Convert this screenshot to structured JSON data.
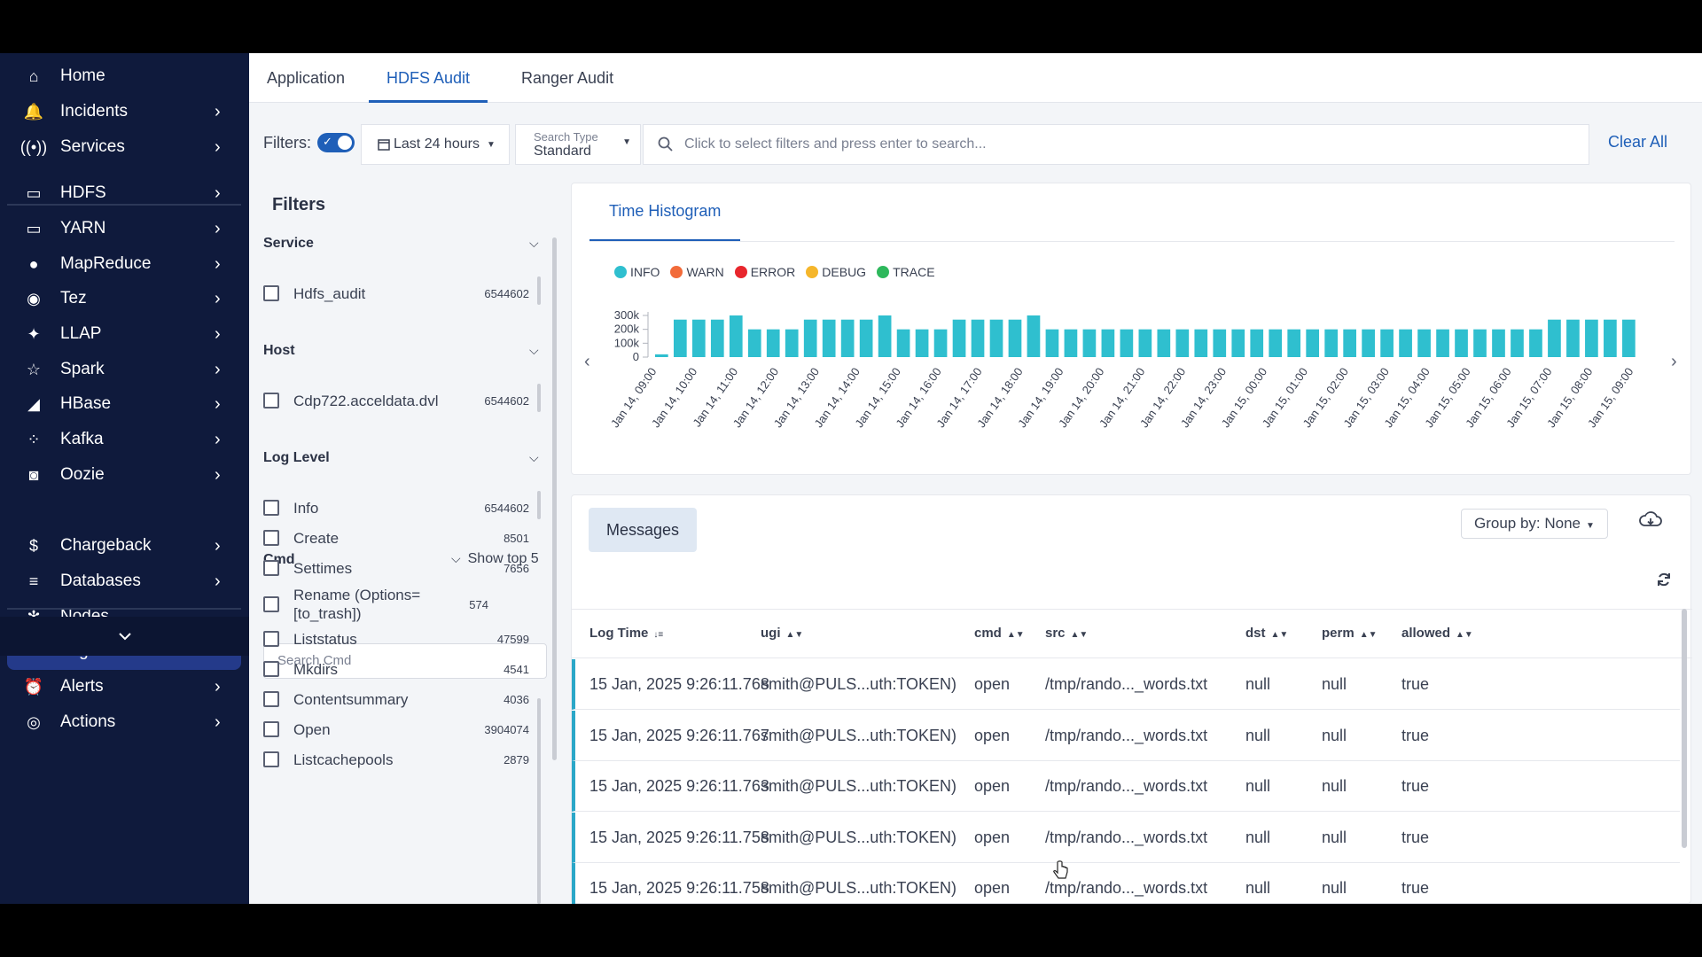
{
  "sidebar": {
    "items": [
      {
        "label": "Home",
        "icon": "home-icon",
        "chevron": false
      },
      {
        "label": "Incidents",
        "icon": "bell-icon",
        "chevron": true
      },
      {
        "label": "Services",
        "icon": "broadcast-icon",
        "chevron": true
      },
      {
        "label": "HDFS",
        "icon": "folder-icon",
        "chevron": true
      },
      {
        "label": "YARN",
        "icon": "laptop-icon",
        "chevron": true
      },
      {
        "label": "MapReduce",
        "icon": "elephant-icon",
        "chevron": true
      },
      {
        "label": "Tez",
        "icon": "tez-icon",
        "chevron": true
      },
      {
        "label": "LLAP",
        "icon": "bee-icon",
        "chevron": true
      },
      {
        "label": "Spark",
        "icon": "spark-icon",
        "chevron": true
      },
      {
        "label": "HBase",
        "icon": "orca-icon",
        "chevron": true
      },
      {
        "label": "Kafka",
        "icon": "kafka-icon",
        "chevron": true
      },
      {
        "label": "Oozie",
        "icon": "oozie-icon",
        "chevron": true
      },
      {
        "label": "Chargeback",
        "icon": "dollar-icon",
        "chevron": true
      },
      {
        "label": "Databases",
        "icon": "database-icon",
        "chevron": true
      },
      {
        "label": "Nodes",
        "icon": "nodes-icon",
        "chevron": false
      },
      {
        "label": "Logs",
        "icon": "code-icon",
        "chevron": false,
        "active": true
      },
      {
        "label": "Alerts",
        "icon": "alarm-icon",
        "chevron": true
      },
      {
        "label": "Actions",
        "icon": "target-icon",
        "chevron": true
      }
    ]
  },
  "tabs": [
    "Application",
    "HDFS Audit",
    "Ranger Audit"
  ],
  "active_tab": "HDFS Audit",
  "filterbar": {
    "label": "Filters:",
    "time_range": "Last 24 hours",
    "search_type_key": "Search Type",
    "search_type_value": "Standard",
    "search_placeholder": "Click to select filters and press enter to search...",
    "clear_all": "Clear All"
  },
  "filters": {
    "title": "Filters",
    "service": {
      "title": "Service",
      "items": [
        {
          "label": "Hdfs_audit",
          "count": "6544602"
        }
      ]
    },
    "host": {
      "title": "Host",
      "items": [
        {
          "label": "Cdp722.acceldata.dvl",
          "count": "6544602"
        }
      ]
    },
    "log_level": {
      "title": "Log Level",
      "items": [
        {
          "label": "Info",
          "count": "6544602"
        }
      ]
    },
    "cmd": {
      "title": "Cmd",
      "show_top": "Show top 5",
      "search_placeholder": "Search Cmd",
      "items": [
        {
          "label": "Create",
          "count": "8501"
        },
        {
          "label": "Settimes",
          "count": "7656"
        },
        {
          "label": "Rename (Options=[to_trash])",
          "count": "574"
        },
        {
          "label": "Liststatus",
          "count": "47599"
        },
        {
          "label": "Mkdirs",
          "count": "4541"
        },
        {
          "label": "Contentsummary",
          "count": "4036"
        },
        {
          "label": "Open",
          "count": "3904074"
        },
        {
          "label": "Listcachepools",
          "count": "2879"
        }
      ]
    }
  },
  "histogram": {
    "tab": "Time Histogram"
  },
  "chart_data": {
    "type": "bar",
    "legend": [
      {
        "name": "INFO",
        "color": "#2fbfcf"
      },
      {
        "name": "WARN",
        "color": "#f26b3a"
      },
      {
        "name": "ERROR",
        "color": "#e8262d"
      },
      {
        "name": "DEBUG",
        "color": "#f5b62b"
      },
      {
        "name": "TRACE",
        "color": "#2eb85c"
      }
    ],
    "ylim": [
      0,
      300000
    ],
    "yticks": [
      {
        "value": 0,
        "label": "0"
      },
      {
        "value": 100000,
        "label": "100k"
      },
      {
        "value": 200000,
        "label": "200k"
      },
      {
        "value": 300000,
        "label": "300k"
      }
    ],
    "xlabels": [
      "Jan 14, 09:00",
      "Jan 14, 10:00",
      "Jan 14, 11:00",
      "Jan 14, 12:00",
      "Jan 14, 13:00",
      "Jan 14, 14:00",
      "Jan 14, 15:00",
      "Jan 14, 16:00",
      "Jan 14, 17:00",
      "Jan 14, 18:00",
      "Jan 14, 19:00",
      "Jan 14, 20:00",
      "Jan 14, 21:00",
      "Jan 14, 22:00",
      "Jan 14, 23:00",
      "Jan 15, 00:00",
      "Jan 15, 01:00",
      "Jan 15, 02:00",
      "Jan 15, 03:00",
      "Jan 15, 04:00",
      "Jan 15, 05:00",
      "Jan 15, 06:00",
      "Jan 15, 07:00",
      "Jan 15, 08:00",
      "Jan 15, 09:00"
    ],
    "series": [
      {
        "name": "INFO",
        "color": "#2fbfcf",
        "values": [
          20000,
          270000,
          270000,
          270000,
          310000,
          200000,
          200000,
          200000,
          270000,
          270000,
          270000,
          270000,
          310000,
          200000,
          200000,
          200000,
          270000,
          270000,
          270000,
          270000,
          310000,
          200000,
          200000,
          200000,
          200000,
          200000,
          200000,
          200000,
          200000,
          200000,
          200000,
          200000,
          200000,
          200000,
          200000,
          200000,
          200000,
          200000,
          200000,
          200000,
          200000,
          200000,
          200000,
          200000,
          200000,
          200000,
          200000,
          200000,
          270000,
          270000,
          270000,
          270000,
          270000
        ]
      }
    ]
  },
  "messages": {
    "title": "Messages",
    "group_by": "Group by: None",
    "columns": [
      "Log Time",
      "ugi",
      "cmd",
      "src",
      "dst",
      "perm",
      "allowed"
    ],
    "rows": [
      [
        "15 Jan, 2025 9:26:11.768",
        "smith@PULS...uth:TOKEN)",
        "open",
        "/tmp/rando..._words.txt",
        "null",
        "null",
        "true"
      ],
      [
        "15 Jan, 2025 9:26:11.767",
        "smith@PULS...uth:TOKEN)",
        "open",
        "/tmp/rando..._words.txt",
        "null",
        "null",
        "true"
      ],
      [
        "15 Jan, 2025 9:26:11.763",
        "smith@PULS...uth:TOKEN)",
        "open",
        "/tmp/rando..._words.txt",
        "null",
        "null",
        "true"
      ],
      [
        "15 Jan, 2025 9:26:11.758",
        "smith@PULS...uth:TOKEN)",
        "open",
        "/tmp/rando..._words.txt",
        "null",
        "null",
        "true"
      ],
      [
        "15 Jan, 2025 9:26:11.758",
        "smith@PULS...uth:TOKEN)",
        "open",
        "/tmp/rando..._words.txt",
        "null",
        "null",
        "true"
      ]
    ]
  }
}
